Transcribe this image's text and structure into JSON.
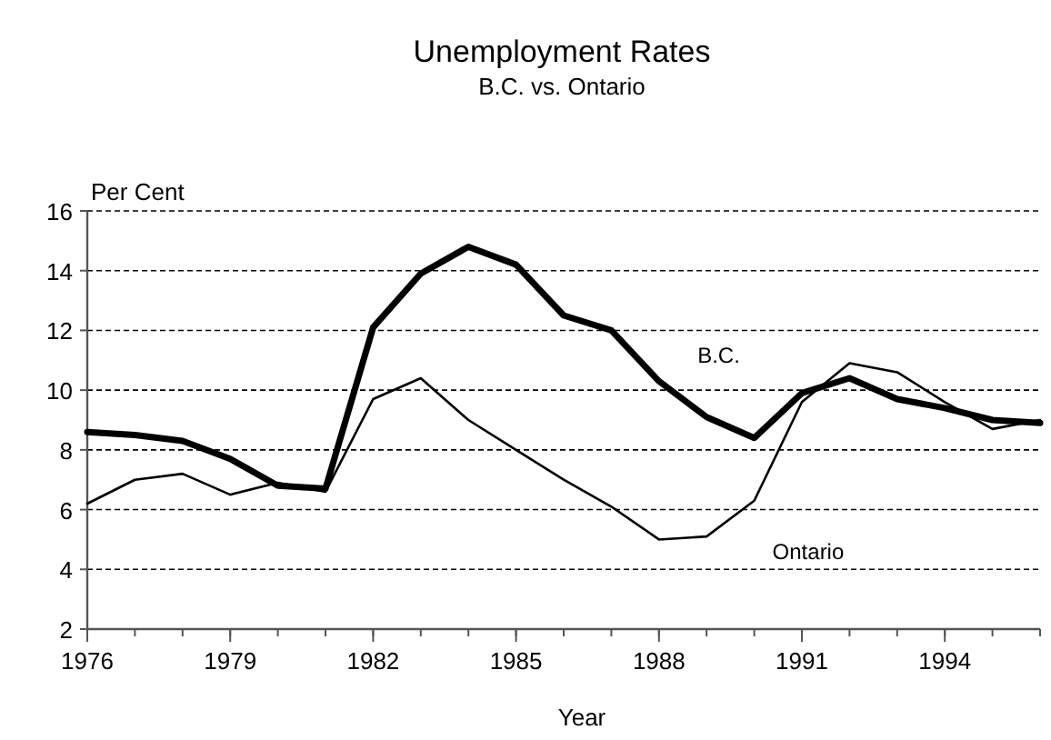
{
  "chart_data": {
    "type": "line",
    "title": "Unemployment Rates",
    "subtitle": "B.C. vs. Ontario",
    "xlabel": "Year",
    "ylabel": "Per Cent",
    "x": [
      1976,
      1977,
      1978,
      1979,
      1980,
      1981,
      1982,
      1983,
      1984,
      1985,
      1986,
      1987,
      1988,
      1989,
      1990,
      1991,
      1992,
      1993,
      1994,
      1995,
      1996
    ],
    "xlim": [
      1976,
      1996
    ],
    "xticks": [
      1976,
      1979,
      1982,
      1985,
      1988,
      1991,
      1994
    ],
    "ylim": [
      2,
      16
    ],
    "yticks": [
      2,
      4,
      6,
      8,
      10,
      12,
      14,
      16
    ],
    "grid": "y",
    "legend": false,
    "marker": "none",
    "line_style": "solid",
    "series": [
      {
        "name": "B.C.",
        "color": "#000000",
        "values": [
          8.6,
          8.5,
          8.3,
          7.7,
          6.8,
          6.7,
          12.1,
          13.9,
          14.8,
          14.2,
          12.5,
          12.0,
          10.3,
          9.1,
          8.4,
          9.9,
          10.4,
          9.7,
          9.4,
          9.0,
          8.9
        ]
      },
      {
        "name": "Ontario",
        "color": "#000000",
        "values": [
          6.2,
          7.0,
          7.2,
          6.5,
          6.9,
          6.6,
          9.7,
          10.4,
          9.0,
          8.0,
          7.0,
          6.1,
          5.0,
          5.1,
          6.3,
          9.6,
          10.9,
          10.6,
          9.6,
          8.7,
          9.0
        ]
      }
    ]
  }
}
